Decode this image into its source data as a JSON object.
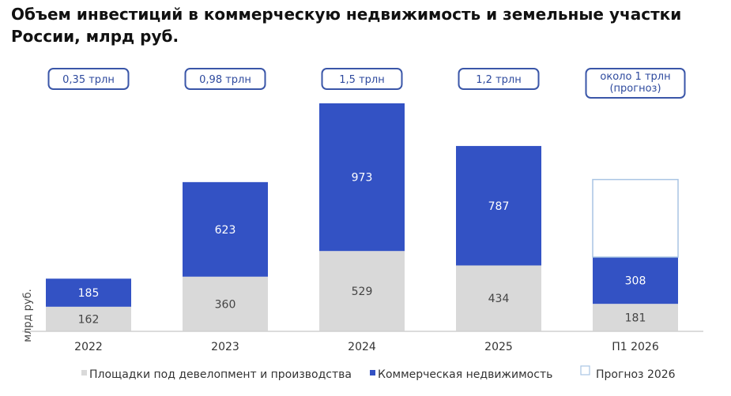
{
  "title_line1": "Объем инвестиций в коммерческую недвижимость и земельные участки",
  "title_line2": "России, млрд руб.",
  "chart_data": {
    "type": "bar",
    "stacked": true,
    "categories": [
      "2022",
      "2023",
      "2024",
      "2025",
      "П1 2026"
    ],
    "series": [
      {
        "name": "Площадки под девелопмент и производства",
        "values": [
          162,
          360,
          529,
          434,
          181
        ],
        "color": "#d9d9d9"
      },
      {
        "name": "Коммерческая недвижимость",
        "values": [
          185,
          623,
          973,
          787,
          308
        ],
        "color": "#3352c4"
      },
      {
        "name": "Прогноз 2026",
        "values": [
          null,
          null,
          null,
          null,
          511
        ],
        "color": "#ffffff",
        "border": "#a9c4e4"
      }
    ],
    "totals": [
      [
        "0,35 трлн"
      ],
      [
        "0,98 трлн"
      ],
      [
        "1,5 трлн"
      ],
      [
        "1,2 трлн"
      ],
      [
        "около 1 трлн",
        "(прогноз)"
      ]
    ],
    "ylabel": "млрд руб.",
    "ylim": [
      0,
      1502
    ],
    "grid": false,
    "legend_position": "bottom",
    "colors": {
      "total_box_border": "#3a56a8",
      "total_text": "#2e4a9e",
      "axis": "#d0d0d0"
    }
  }
}
